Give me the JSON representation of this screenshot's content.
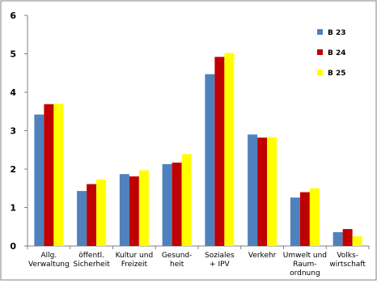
{
  "chart_data": {
    "type": "bar",
    "categories": [
      [
        "Allg.",
        "Verwaltung"
      ],
      [
        "öffentl.",
        "Sicherheit"
      ],
      [
        "Kultur und",
        "Freizeit"
      ],
      [
        "Gesund-",
        "heit"
      ],
      [
        "Soziales",
        "+ IPV"
      ],
      [
        "Verkehr"
      ],
      [
        "Umwelt und",
        "Raum-",
        "ordnung"
      ],
      [
        "Volks-",
        "wirtschaft"
      ]
    ],
    "series": [
      {
        "name": "B 23",
        "color": "#4F81BD",
        "values": [
          3.42,
          1.43,
          1.87,
          2.13,
          4.47,
          2.9,
          1.26,
          0.36
        ]
      },
      {
        "name": "B 24",
        "color": "#C00000",
        "values": [
          3.69,
          1.61,
          1.81,
          2.17,
          4.92,
          2.82,
          1.4,
          0.44
        ]
      },
      {
        "name": "B 25",
        "color": "#FFFF00",
        "values": [
          3.7,
          1.73,
          1.97,
          2.39,
          5.02,
          2.83,
          1.5,
          0.25
        ]
      }
    ],
    "yticks": [
      0,
      1,
      2,
      3,
      4,
      5,
      6
    ],
    "ylim": [
      0,
      6
    ],
    "grid": false,
    "legend_position": "top-right",
    "title": "",
    "xlabel": "",
    "ylabel": ""
  }
}
